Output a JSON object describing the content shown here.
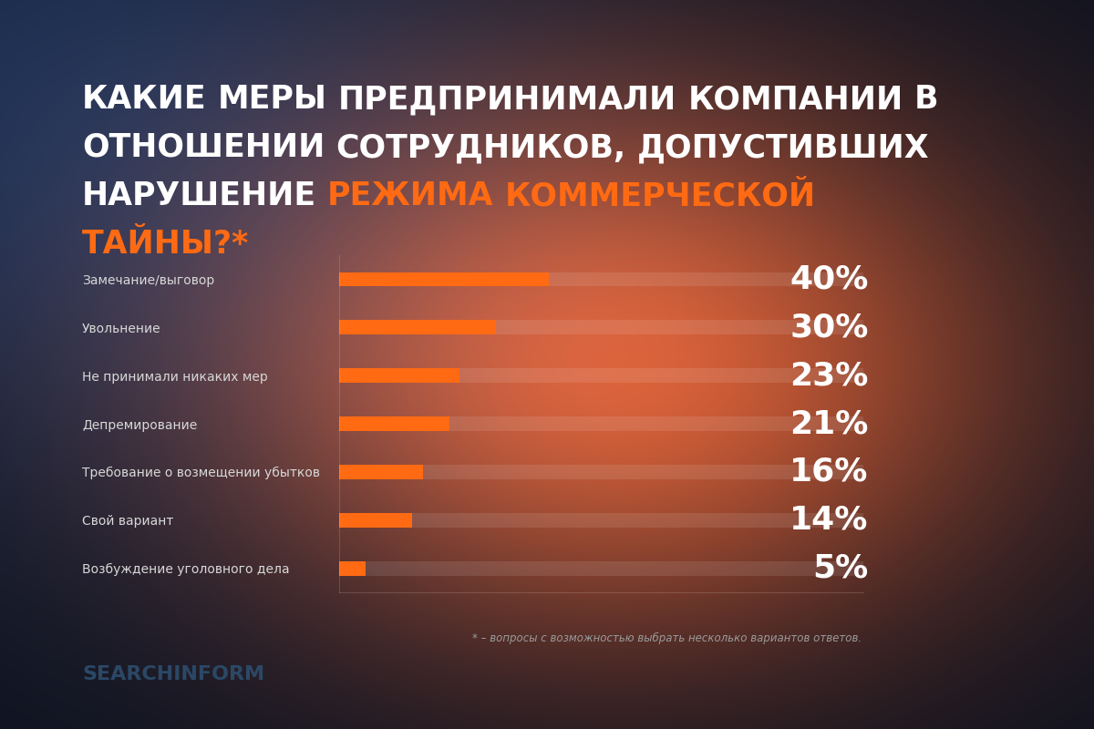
{
  "chart_data": {
    "type": "bar",
    "title": "КАКИЕ МЕРЫ ПРЕДПРИНИМАЛИ КОМПАНИИ В ОТНОШЕНИИ СОТРУДНИКОВ, ДОПУСТИВШИХ НАРУШЕНИЕ РЕЖИМА КОММЕРЧЕСКОЙ ТАЙНЫ?*",
    "categories": [
      "Замечание/выговор",
      "Увольнение",
      "Не принимали никаких мер",
      "Депремирование",
      "Требование о возмещении убытков",
      "Свой вариант",
      "Возбуждение уголовного дела"
    ],
    "values": [
      40,
      30,
      23,
      21,
      16,
      14,
      5
    ],
    "value_labels": [
      "40%",
      "30%",
      "23%",
      "21%",
      "16%",
      "14%",
      "5%"
    ],
    "color": "#ff6a13",
    "orientation": "horizontal",
    "xlim": [
      0,
      100
    ],
    "data_labels": true,
    "tick_labels": "y",
    "grid": false,
    "annotations": [
      "* – вопросы с возможностью выбрать несколько вариантов ответов.",
      "SEARCHINFORM"
    ]
  }
}
